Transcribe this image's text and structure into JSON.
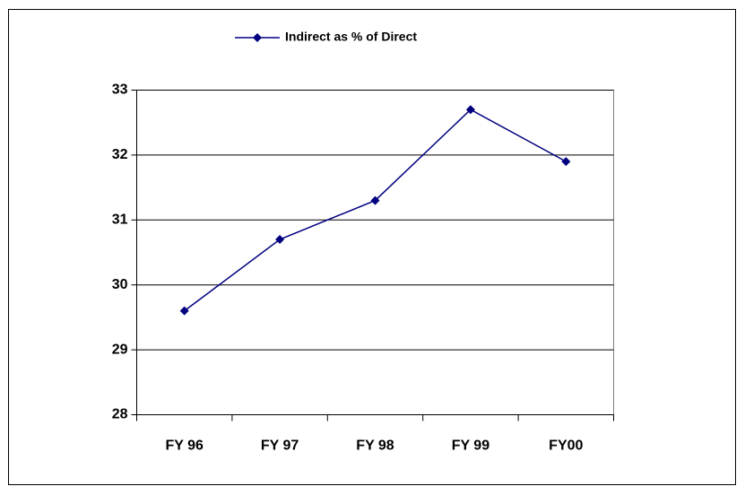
{
  "chart_data": {
    "type": "line",
    "categories": [
      "FY 96",
      "FY 97",
      "FY 98",
      "FY 99",
      "FY00"
    ],
    "series": [
      {
        "name": "Indirect as % of Direct",
        "color": "#000080",
        "values": [
          29.6,
          30.7,
          31.3,
          32.7,
          31.9
        ]
      }
    ],
    "ylim": [
      28,
      33
    ],
    "yticks": [
      28,
      29,
      30,
      31,
      32,
      33
    ],
    "grid": true,
    "legend": "top"
  }
}
